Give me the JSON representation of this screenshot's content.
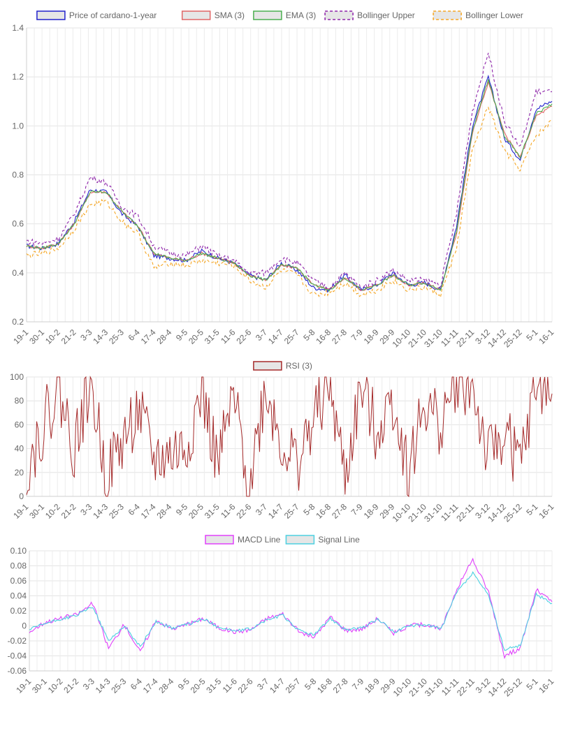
{
  "charts": {
    "price": {
      "type": "line",
      "ylim": [
        0.2,
        1.4
      ],
      "yticks": [
        "0.2",
        "0.4",
        "0.6",
        "0.8",
        "1.0",
        "1.2",
        "1.4"
      ],
      "xticks": [
        "19-1",
        "30-1",
        "10-2",
        "21-2",
        "3-3",
        "14-3",
        "25-3",
        "6-4",
        "17-4",
        "28-4",
        "9-5",
        "20-5",
        "31-5",
        "11-6",
        "22-6",
        "3-7",
        "14-7",
        "25-7",
        "5-8",
        "16-8",
        "27-8",
        "7-9",
        "18-9",
        "29-9",
        "10-10",
        "21-10",
        "31-10",
        "11-11",
        "22-11",
        "3-12",
        "14-12",
        "25-12",
        "5-1",
        "16-1"
      ],
      "legend": [
        {
          "label": "Price of cardano-1-year",
          "color": "#2222cc",
          "dashed": false
        },
        {
          "label": "SMA (3)",
          "color": "#e06666",
          "dashed": false
        },
        {
          "label": "EMA (3)",
          "color": "#4caf50",
          "dashed": false
        },
        {
          "label": "Bollinger Upper",
          "color": "#8e24aa",
          "dashed": true
        },
        {
          "label": "Bollinger Lower",
          "color": "#f5a623",
          "dashed": true
        }
      ]
    },
    "rsi": {
      "type": "line",
      "ylim": [
        0,
        100
      ],
      "yticks": [
        "0",
        "20",
        "40",
        "60",
        "80",
        "100"
      ],
      "legend": [
        {
          "label": "RSI (3)",
          "color": "#a52a2a",
          "dashed": false
        }
      ]
    },
    "macd": {
      "type": "line",
      "ylim": [
        -0.06,
        0.1
      ],
      "yticks": [
        "-0.06",
        "-0.04",
        "-0.02",
        "0",
        "0.02",
        "0.04",
        "0.06",
        "0.08",
        "0.10"
      ],
      "xticks": [
        "19-1",
        "30-1",
        "10-2",
        "21-2",
        "3-3",
        "14-3",
        "25-3",
        "6-4",
        "17-4",
        "28-4",
        "9-5",
        "20-5",
        "31-5",
        "11-6",
        "22-6",
        "3-7",
        "14-7",
        "25-7",
        "5-8",
        "16-8",
        "27-8",
        "7-9",
        "18-9",
        "29-9",
        "10-10",
        "21-10",
        "31-10",
        "11-11",
        "22-11",
        "3-12",
        "14-12",
        "25-12",
        "5-1",
        "16-1"
      ],
      "legend": [
        {
          "label": "MACD Line",
          "color": "#e040fb",
          "dashed": false
        },
        {
          "label": "Signal Line",
          "color": "#4dd0e1",
          "dashed": false
        }
      ]
    }
  },
  "chart_data": [
    {
      "type": "line",
      "xlabel": "",
      "ylabel": "",
      "ylim": [
        0.2,
        1.4
      ],
      "x": [
        "19-1",
        "30-1",
        "10-2",
        "21-2",
        "3-3",
        "14-3",
        "25-3",
        "6-4",
        "17-4",
        "28-4",
        "9-5",
        "20-5",
        "31-5",
        "11-6",
        "22-6",
        "3-7",
        "14-7",
        "25-7",
        "5-8",
        "16-8",
        "27-8",
        "7-9",
        "18-9",
        "29-9",
        "10-10",
        "21-10",
        "31-10",
        "11-11",
        "22-11",
        "3-12",
        "14-12",
        "25-12",
        "5-1",
        "16-1"
      ],
      "series": [
        {
          "name": "Price of cardano-1-year",
          "values": [
            0.51,
            0.5,
            0.52,
            0.61,
            0.74,
            0.73,
            0.64,
            0.59,
            0.47,
            0.46,
            0.45,
            0.49,
            0.46,
            0.44,
            0.39,
            0.37,
            0.44,
            0.41,
            0.34,
            0.33,
            0.39,
            0.33,
            0.35,
            0.4,
            0.35,
            0.36,
            0.33,
            0.59,
            1.0,
            1.2,
            0.95,
            0.86,
            1.07,
            1.1
          ]
        },
        {
          "name": "SMA (3)",
          "values": [
            0.51,
            0.5,
            0.52,
            0.6,
            0.73,
            0.73,
            0.65,
            0.59,
            0.48,
            0.46,
            0.45,
            0.48,
            0.46,
            0.44,
            0.39,
            0.37,
            0.43,
            0.42,
            0.35,
            0.33,
            0.38,
            0.33,
            0.35,
            0.39,
            0.35,
            0.36,
            0.33,
            0.56,
            0.97,
            1.18,
            0.97,
            0.87,
            1.04,
            1.08
          ]
        },
        {
          "name": "EMA (3)",
          "values": [
            0.51,
            0.5,
            0.52,
            0.6,
            0.73,
            0.73,
            0.65,
            0.59,
            0.48,
            0.46,
            0.45,
            0.48,
            0.46,
            0.44,
            0.39,
            0.37,
            0.43,
            0.42,
            0.35,
            0.33,
            0.38,
            0.33,
            0.35,
            0.39,
            0.35,
            0.36,
            0.33,
            0.57,
            0.98,
            1.19,
            0.96,
            0.87,
            1.05,
            1.09
          ]
        },
        {
          "name": "Bollinger Upper",
          "values": [
            0.53,
            0.52,
            0.54,
            0.64,
            0.79,
            0.77,
            0.67,
            0.63,
            0.51,
            0.48,
            0.47,
            0.51,
            0.47,
            0.45,
            0.4,
            0.4,
            0.46,
            0.44,
            0.37,
            0.34,
            0.4,
            0.34,
            0.37,
            0.41,
            0.37,
            0.37,
            0.35,
            0.64,
            1.06,
            1.3,
            1.02,
            0.91,
            1.14,
            1.14
          ]
        },
        {
          "name": "Bollinger Lower",
          "values": [
            0.47,
            0.48,
            0.5,
            0.58,
            0.68,
            0.69,
            0.61,
            0.56,
            0.42,
            0.44,
            0.43,
            0.45,
            0.44,
            0.43,
            0.37,
            0.34,
            0.41,
            0.39,
            0.31,
            0.32,
            0.36,
            0.31,
            0.33,
            0.37,
            0.33,
            0.34,
            0.31,
            0.5,
            0.9,
            1.08,
            0.9,
            0.82,
            0.96,
            1.02
          ]
        }
      ]
    },
    {
      "type": "line",
      "ylim": [
        0,
        100
      ],
      "x": [
        "19-1",
        "30-1",
        "10-2",
        "21-2",
        "3-3",
        "14-3",
        "25-3",
        "6-4",
        "17-4",
        "28-4",
        "9-5",
        "20-5",
        "31-5",
        "11-6",
        "22-6",
        "3-7",
        "14-7",
        "25-7",
        "5-8",
        "16-8",
        "27-8",
        "7-9",
        "18-9",
        "29-9",
        "10-10",
        "21-10",
        "31-10",
        "11-11",
        "22-11",
        "3-12",
        "14-12",
        "25-12",
        "5-1",
        "16-1"
      ],
      "series": [
        {
          "name": "RSI (3)",
          "values": [
            24,
            58,
            90,
            40,
            97,
            18,
            45,
            72,
            30,
            35,
            40,
            88,
            25,
            80,
            10,
            92,
            45,
            28,
            62,
            96,
            15,
            90,
            55,
            82,
            20,
            78,
            60,
            98,
            90,
            30,
            55,
            25,
            93,
            86
          ]
        }
      ]
    },
    {
      "type": "line",
      "ylim": [
        -0.06,
        0.1
      ],
      "x": [
        "19-1",
        "30-1",
        "10-2",
        "21-2",
        "3-3",
        "14-3",
        "25-3",
        "6-4",
        "17-4",
        "28-4",
        "9-5",
        "20-5",
        "31-5",
        "11-6",
        "22-6",
        "3-7",
        "14-7",
        "25-7",
        "5-8",
        "16-8",
        "27-8",
        "7-9",
        "18-9",
        "29-9",
        "10-10",
        "21-10",
        "31-10",
        "11-11",
        "22-11",
        "3-12",
        "14-12",
        "25-12",
        "5-1",
        "16-1"
      ],
      "series": [
        {
          "name": "MACD Line",
          "values": [
            -0.008,
            0.005,
            0.01,
            0.015,
            0.03,
            -0.03,
            0.002,
            -0.035,
            0.008,
            -0.004,
            0.002,
            0.01,
            -0.003,
            -0.008,
            -0.005,
            0.01,
            0.016,
            -0.008,
            -0.015,
            0.012,
            -0.006,
            -0.004,
            0.01,
            -0.01,
            0.0,
            0.002,
            -0.005,
            0.05,
            0.088,
            0.045,
            -0.04,
            -0.03,
            0.048,
            0.032
          ]
        },
        {
          "name": "Signal Line",
          "values": [
            -0.005,
            0.003,
            0.009,
            0.014,
            0.026,
            -0.02,
            0.0,
            -0.028,
            0.006,
            -0.003,
            0.002,
            0.009,
            -0.002,
            -0.007,
            -0.004,
            0.008,
            0.014,
            -0.006,
            -0.012,
            0.01,
            -0.005,
            -0.003,
            0.009,
            -0.008,
            0.0,
            0.002,
            -0.004,
            0.045,
            0.07,
            0.04,
            -0.032,
            -0.026,
            0.042,
            0.03
          ]
        }
      ]
    }
  ]
}
